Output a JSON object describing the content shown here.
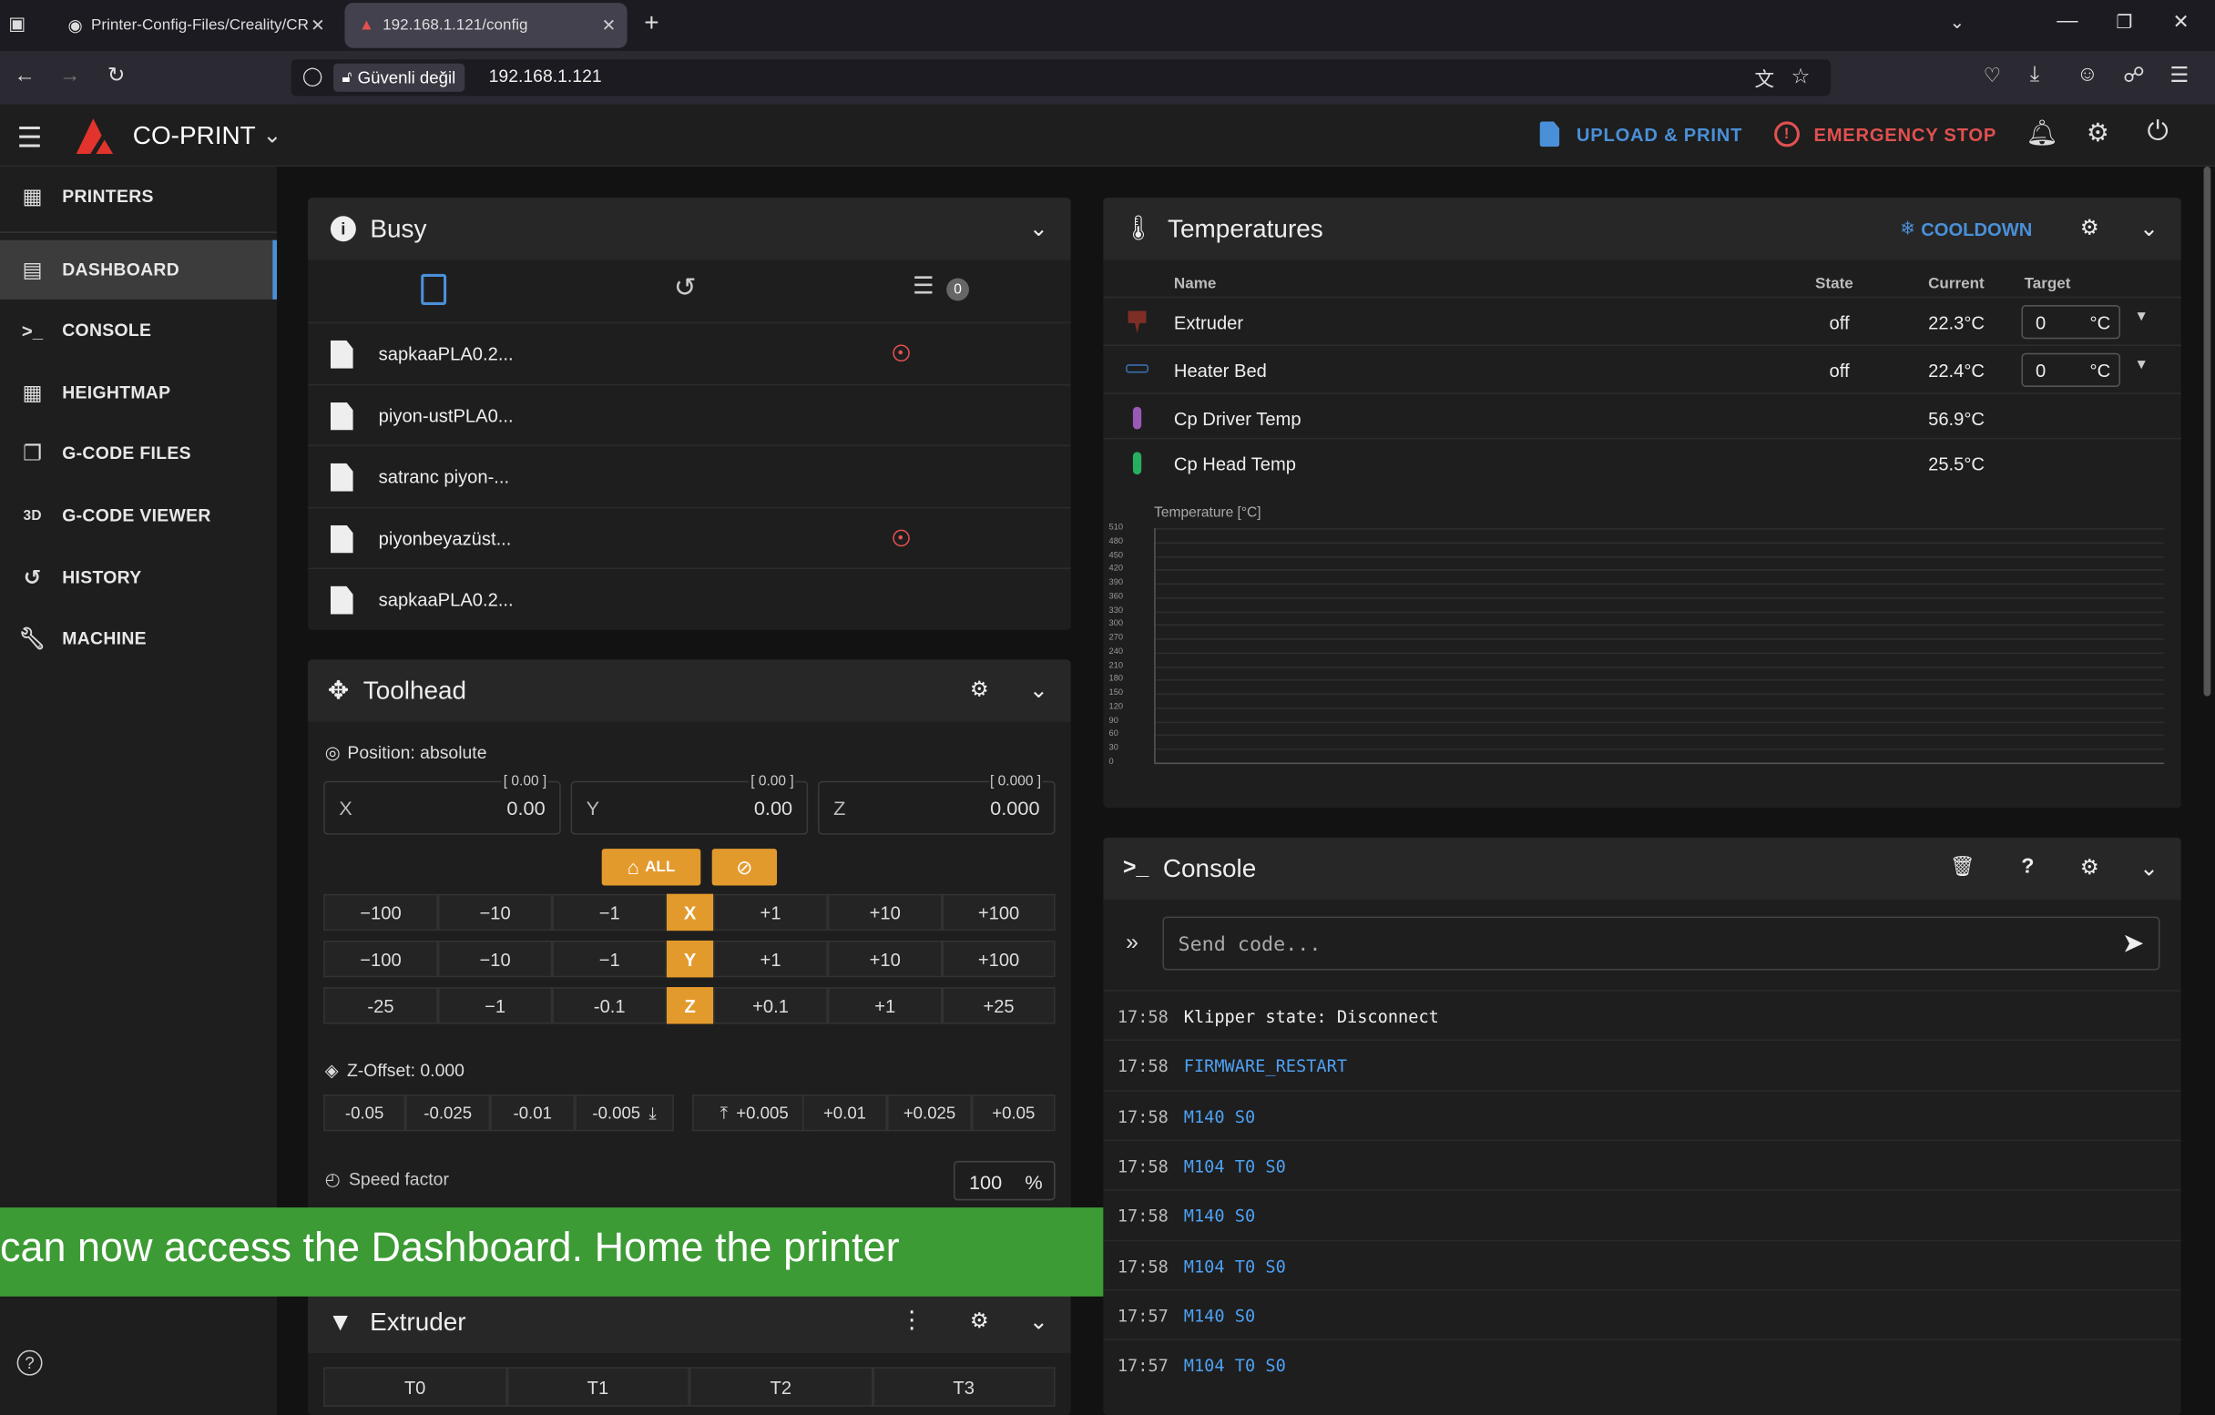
{
  "browser": {
    "tabs": [
      {
        "label": "Printer-Config-Files/Creality/CR"
      },
      {
        "label": "192.168.1.121/config"
      }
    ],
    "security_label": "Güvenli değil",
    "url": "192.168.1.121"
  },
  "appbar": {
    "brand": "CO-PRINT",
    "upload_label": "UPLOAD & PRINT",
    "estop_label": "EMERGENCY STOP"
  },
  "sidebar": {
    "items": [
      {
        "label": "PRINTERS",
        "icon": "grid-icon"
      },
      {
        "label": "DASHBOARD",
        "icon": "monitor-icon"
      },
      {
        "label": "CONSOLE",
        "icon": "terminal-icon"
      },
      {
        "label": "HEIGHTMAP",
        "icon": "table-icon"
      },
      {
        "label": "G-CODE FILES",
        "icon": "files-icon"
      },
      {
        "label": "G-CODE VIEWER",
        "icon": "3d-icon"
      },
      {
        "label": "HISTORY",
        "icon": "history-icon"
      },
      {
        "label": "MACHINE",
        "icon": "wrench-icon"
      }
    ],
    "icon_3d": "3D"
  },
  "busy": {
    "title": "Busy",
    "queue_count": "0",
    "files": [
      {
        "name": "sapkaaPLA0.2...",
        "error": true
      },
      {
        "name": "piyon-ustPLA0...",
        "error": false
      },
      {
        "name": "satranc piyon-...",
        "error": false
      },
      {
        "name": "piyonbeyazüst...",
        "error": true
      },
      {
        "name": "sapkaaPLA0.2...",
        "error": false
      }
    ]
  },
  "toolhead": {
    "title": "Toolhead",
    "position_label": "Position: absolute",
    "axes": [
      {
        "label": "X",
        "value": "0.00",
        "target": "[ 0.00 ]"
      },
      {
        "label": "Y",
        "value": "0.00",
        "target": "[ 0.00 ]"
      },
      {
        "label": "Z",
        "value": "0.000",
        "target": "[ 0.000 ]"
      }
    ],
    "home_all_label": "ALL",
    "jog_rows": [
      {
        "axis": "X",
        "steps": [
          "−100",
          "−10",
          "−1",
          "+1",
          "+10",
          "+100"
        ]
      },
      {
        "axis": "Y",
        "steps": [
          "−100",
          "−10",
          "−1",
          "+1",
          "+10",
          "+100"
        ]
      },
      {
        "axis": "Z",
        "steps": [
          "-25",
          "−1",
          "-0.1",
          "+0.1",
          "+1",
          "+25"
        ]
      }
    ],
    "zoffset_label": "Z-Offset: 0.000",
    "zoffset_steps": [
      "-0.05",
      "-0.025",
      "-0.01",
      "-0.005",
      "+0.005",
      "+0.01",
      "+0.025",
      "+0.05"
    ],
    "speed_label": "Speed factor",
    "speed_value": "100",
    "speed_unit": "%"
  },
  "subtitle": "can now access the Dashboard. Home the printer",
  "extruder": {
    "title": "Extruder",
    "tools": [
      "T0",
      "T1",
      "T2",
      "T3"
    ]
  },
  "temperatures": {
    "title": "Temperatures",
    "cooldown_label": "COOLDOWN",
    "columns": {
      "name": "Name",
      "state": "State",
      "current": "Current",
      "target": "Target"
    },
    "rows": [
      {
        "name": "Extruder",
        "state": "off",
        "current": "22.3°C",
        "target": "0",
        "unit": "°C",
        "color": "#c0392b"
      },
      {
        "name": "Heater Bed",
        "state": "off",
        "current": "22.4°C",
        "target": "0",
        "unit": "°C",
        "color": "#3b6fb0"
      },
      {
        "name": "Cp Driver Temp",
        "state": "",
        "current": "56.9°C",
        "target": "",
        "unit": "",
        "color": "#9b59b6"
      },
      {
        "name": "Cp Head Temp",
        "state": "",
        "current": "25.5°C",
        "target": "",
        "unit": "",
        "color": "#27ae60"
      }
    ],
    "chart_label": "Temperature [°C]",
    "y_ticks": [
      "510",
      "480",
      "450",
      "420",
      "390",
      "360",
      "330",
      "300",
      "270",
      "240",
      "210",
      "180",
      "150",
      "120",
      "90",
      "60",
      "30",
      "0"
    ]
  },
  "console": {
    "title": "Console",
    "placeholder": "Send code...",
    "lines": [
      {
        "time": "17:58",
        "msg": "Klipper state: Disconnect",
        "kind": "info"
      },
      {
        "time": "17:58",
        "msg": "FIRMWARE_RESTART",
        "kind": "cmd"
      },
      {
        "time": "17:58",
        "msg": "M140 S0",
        "kind": "cmd"
      },
      {
        "time": "17:58",
        "msg": "M104 T0 S0",
        "kind": "cmd"
      },
      {
        "time": "17:58",
        "msg": "M140 S0",
        "kind": "cmd"
      },
      {
        "time": "17:58",
        "msg": "M104 T0 S0",
        "kind": "cmd"
      },
      {
        "time": "17:57",
        "msg": "M140 S0",
        "kind": "cmd"
      },
      {
        "time": "17:57",
        "msg": "M104 T0 S0",
        "kind": "cmd"
      }
    ]
  },
  "colors": {
    "accent": "#4a90d9",
    "estop": "#e25050",
    "axis": "#e39a2c",
    "subtitle_bg": "#3d9b35",
    "command": "#4ea1f3"
  }
}
